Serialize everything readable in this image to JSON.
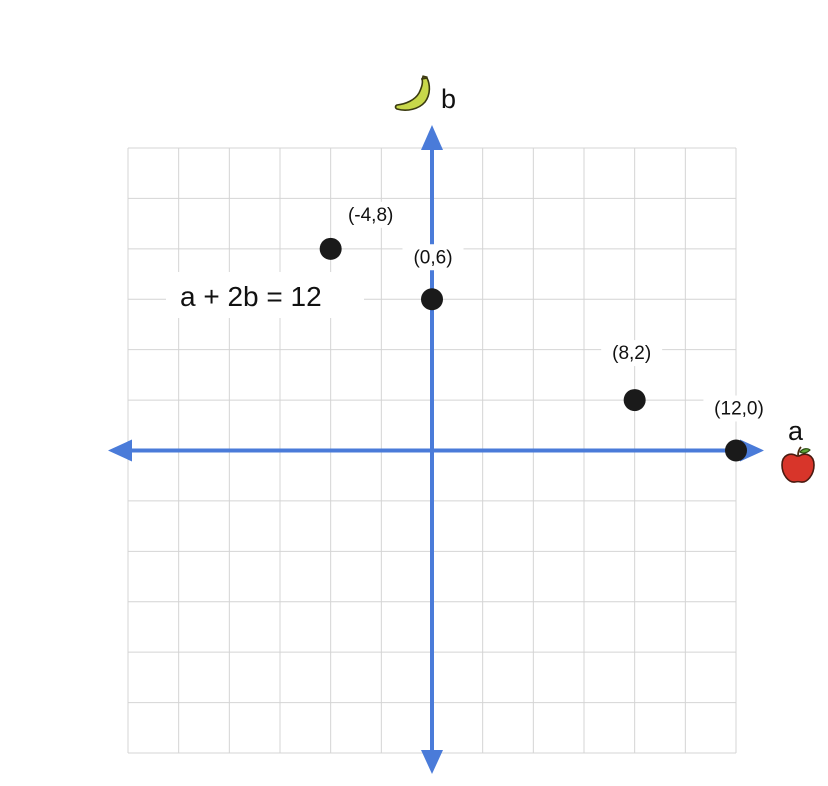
{
  "colors": {
    "background": "#ffffff",
    "grid": "#d4d4d4",
    "axis": "#4a7bd9",
    "point": "#1a1a1a",
    "text": "#111111",
    "banana": "#c8d84a",
    "apple": "#d8352a"
  },
  "icons": {
    "y_axis_icon": "banana-icon",
    "x_axis_icon": "apple-icon"
  },
  "chart_data": {
    "type": "scatter",
    "x_axis_label": "a",
    "y_axis_label": "b",
    "xlim": [
      -12,
      12
    ],
    "ylim": [
      -12,
      12
    ],
    "grid_step": 2,
    "grid": true,
    "equation": "a + 2b = 12",
    "points": [
      {
        "label": "(-4,8)",
        "x": -4,
        "y": 8
      },
      {
        "label": "(0,6)",
        "x": 0,
        "y": 6
      },
      {
        "label": "(8,2)",
        "x": 8,
        "y": 2
      },
      {
        "label": "(12,0)",
        "x": 12,
        "y": 0
      }
    ]
  }
}
